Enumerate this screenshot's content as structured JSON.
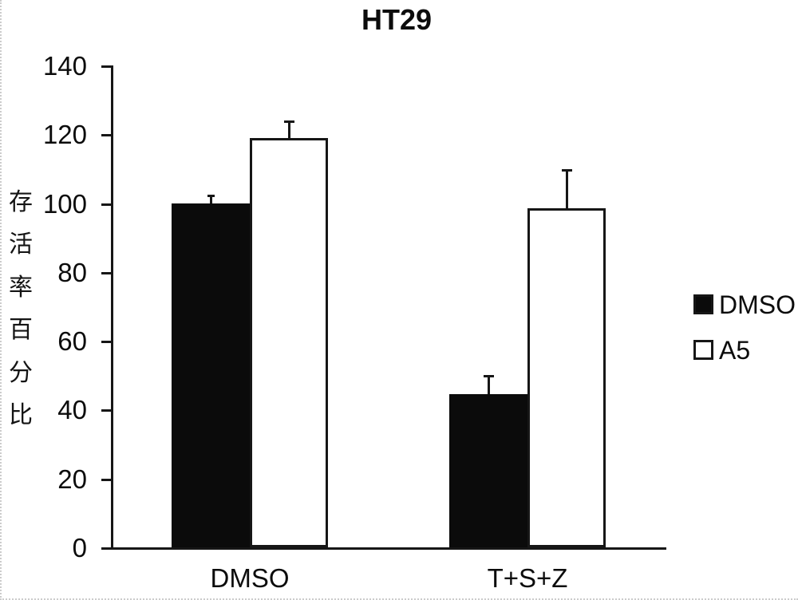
{
  "title": "HT29",
  "y_axis": {
    "label": "存活率百分比",
    "label_chars": [
      "存",
      "活",
      "率",
      "百",
      "分",
      "比"
    ],
    "ticks": [
      140,
      120,
      100,
      80,
      60,
      40,
      20,
      0
    ]
  },
  "x_axis": {
    "categories": [
      "DMSO",
      "T+S+Z"
    ]
  },
  "legend": {
    "position": "right",
    "entries": [
      {
        "label": "DMSO",
        "fill": "#0b0b0b"
      },
      {
        "label": "A5",
        "fill": "#ffffff"
      }
    ]
  },
  "chart_data": {
    "type": "bar",
    "title": "HT29",
    "categories": [
      "DMSO",
      "T+S+Z"
    ],
    "series": [
      {
        "name": "DMSO",
        "fill": "#0b0b0b",
        "values": [
          100,
          44.5
        ],
        "errors": [
          2,
          5
        ]
      },
      {
        "name": "A5",
        "fill": "#ffffff",
        "values": [
          119,
          98.5
        ],
        "errors": [
          4.5,
          11
        ]
      }
    ],
    "xlabel": "",
    "ylabel": "存活率百分比",
    "ylim": [
      0,
      140
    ],
    "yticks": [
      140,
      120,
      100,
      80,
      60,
      40,
      20,
      0
    ],
    "legend_position": "right",
    "grid": false,
    "error_bars": true,
    "colors": {
      "axis": "#161616",
      "text": "#0c0c0c",
      "background": "#ffffff"
    }
  }
}
